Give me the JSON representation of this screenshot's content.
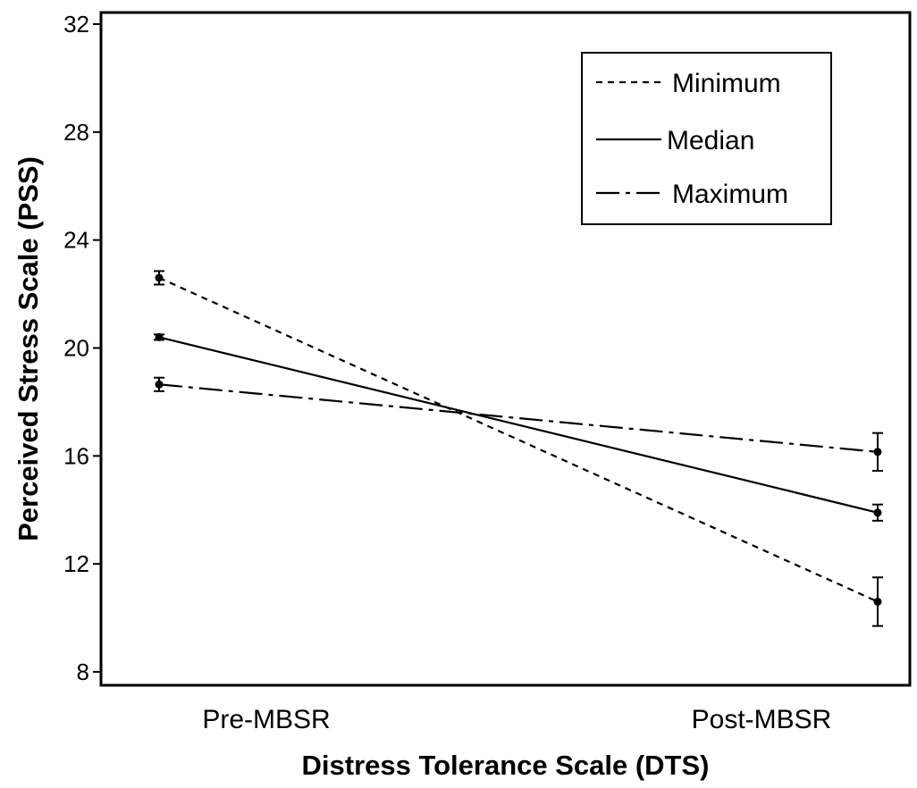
{
  "chart_data": {
    "type": "line",
    "title": "",
    "xlabel": "Distress Tolerance Scale (DTS)",
    "ylabel": "Perceived Stress Scale (PSS)",
    "categories": [
      "Pre-MBSR",
      "Post-MBSR"
    ],
    "ylim": [
      8,
      32
    ],
    "yticks": [
      8,
      12,
      16,
      20,
      24,
      28,
      32
    ],
    "grid": false,
    "legend_position": "top-right",
    "series": [
      {
        "name": "Minimum",
        "style": "dotted",
        "values": [
          22.6,
          10.6
        ],
        "errors": [
          0.25,
          0.9
        ]
      },
      {
        "name": "Median",
        "style": "solid",
        "values": [
          20.4,
          13.9
        ],
        "errors": [
          0.1,
          0.3
        ]
      },
      {
        "name": "Maximum",
        "style": "dashdot",
        "values": [
          18.65,
          16.15
        ],
        "errors": [
          0.25,
          0.7
        ]
      }
    ],
    "colors": {
      "line": "#000000",
      "background": "#ffffff"
    }
  }
}
